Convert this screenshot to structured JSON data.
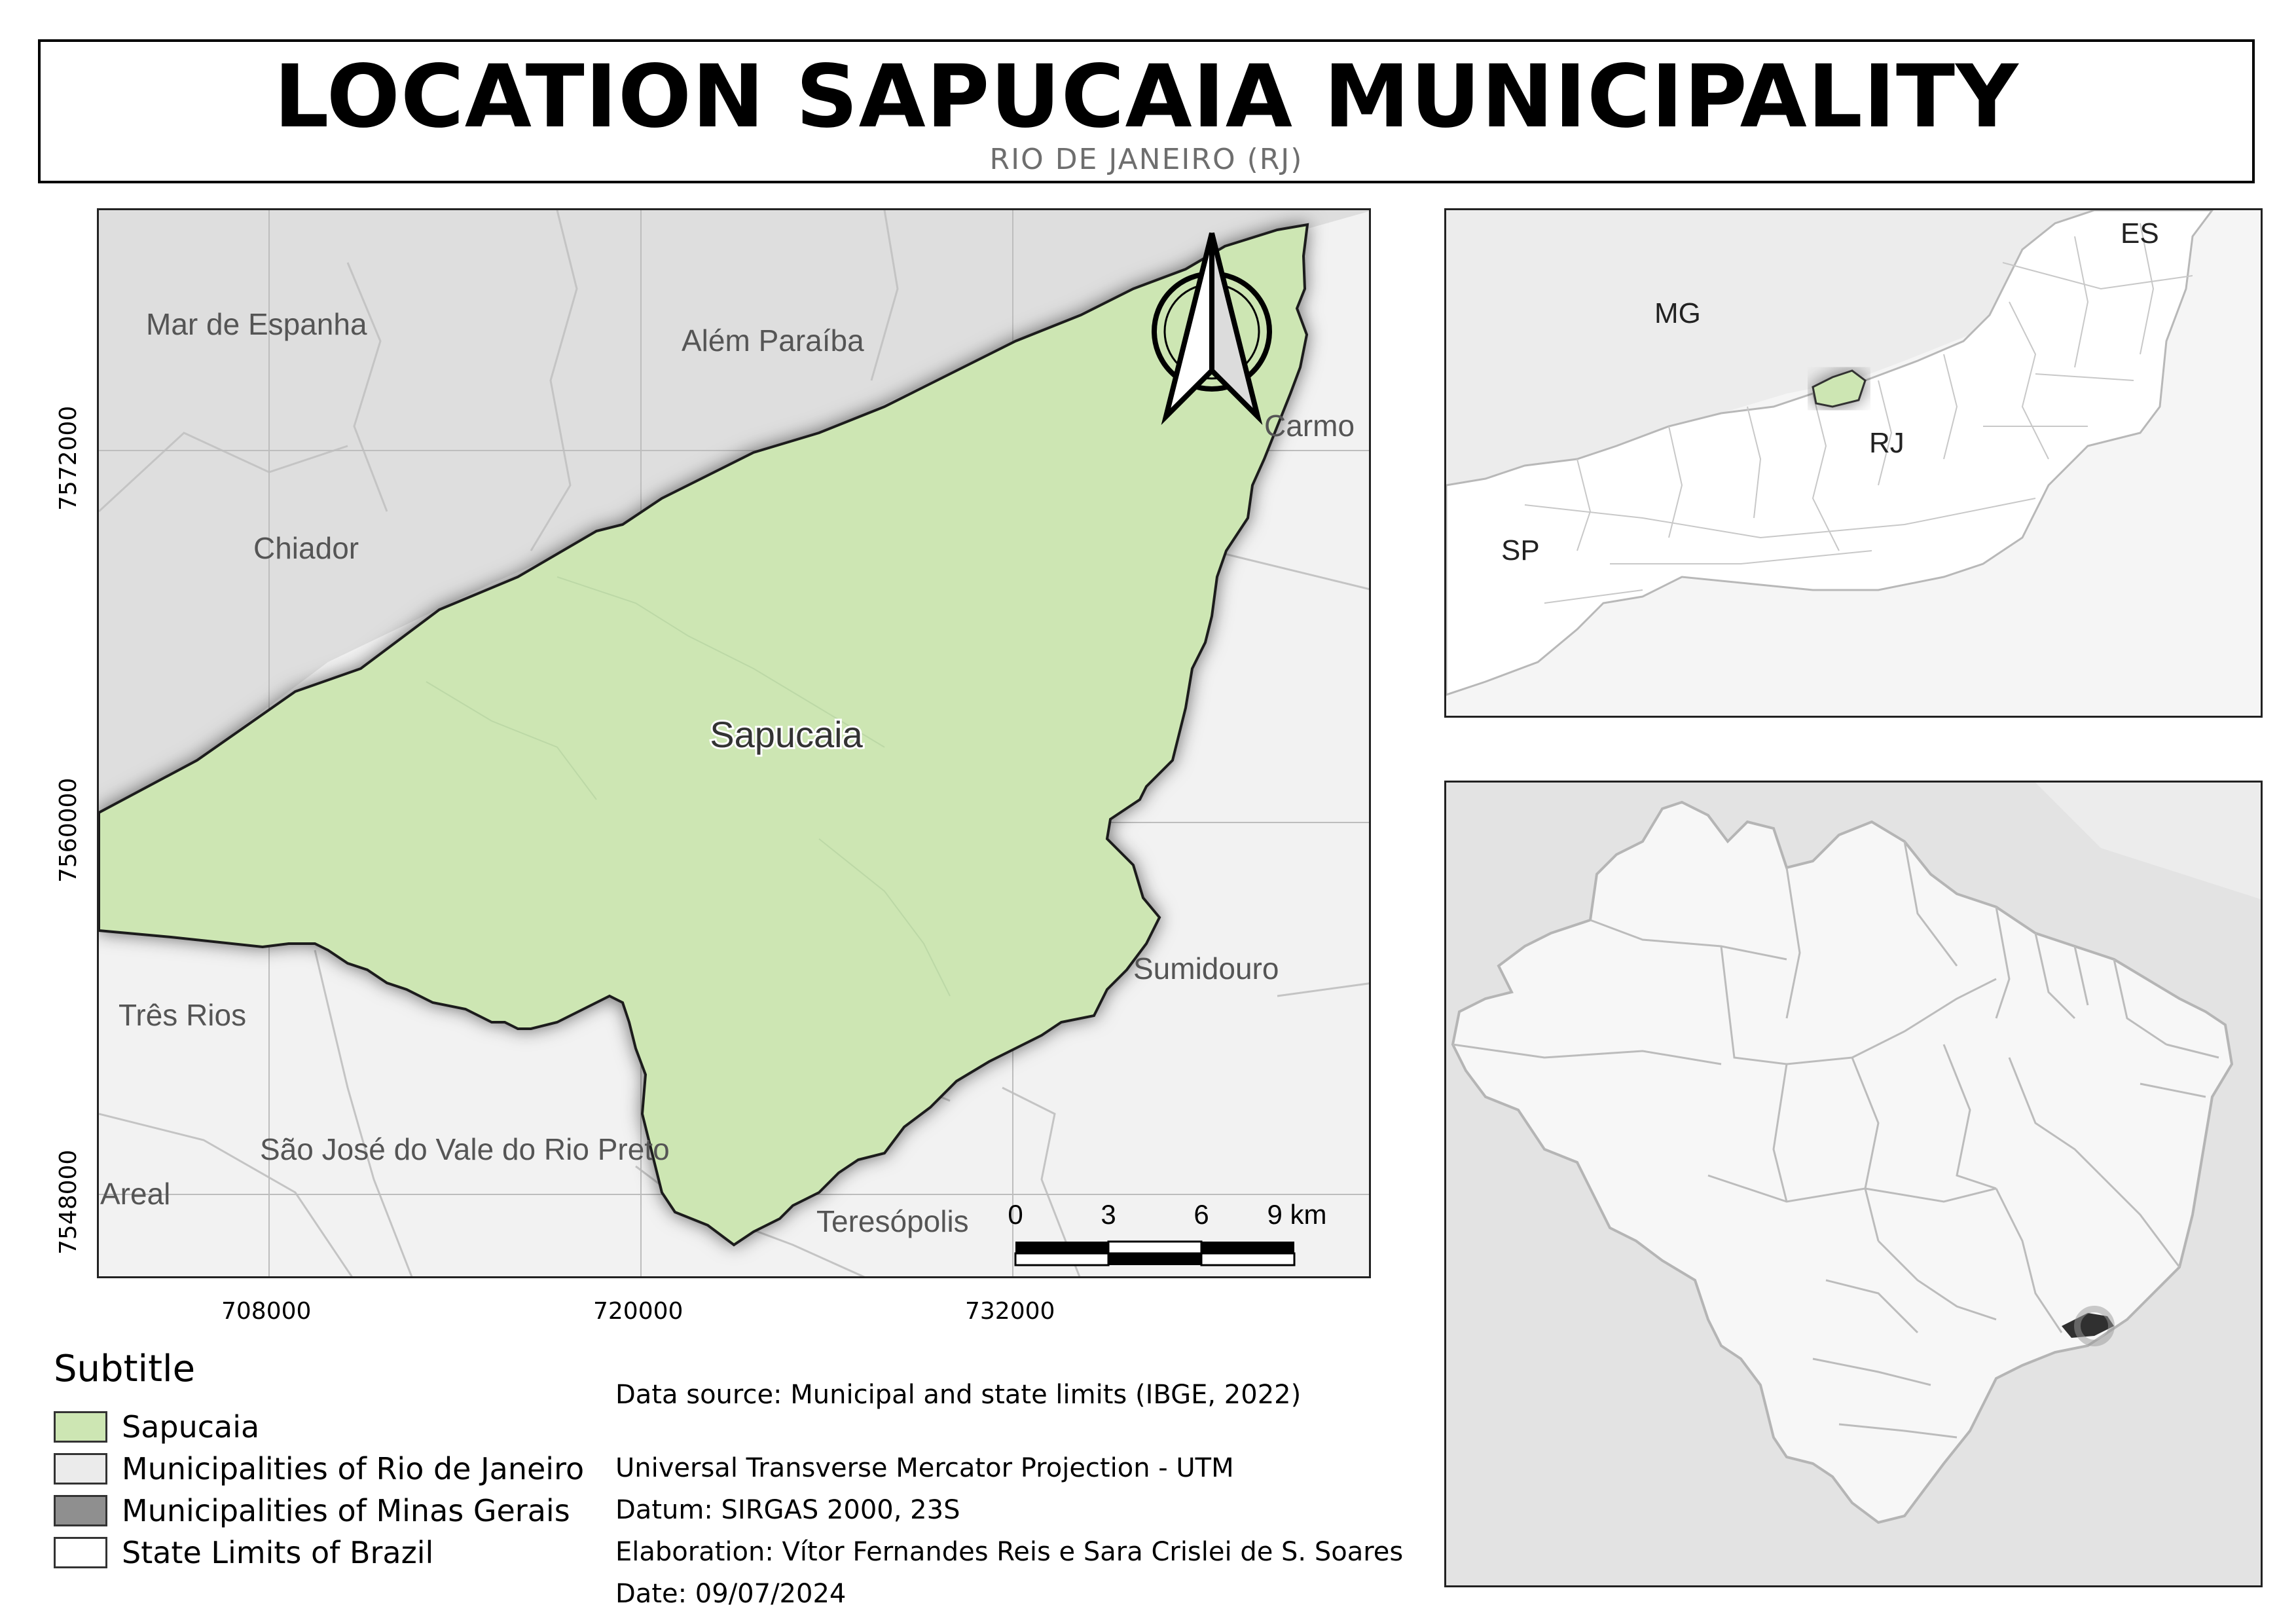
{
  "header": {
    "title": "LOCATION SAPUCAIA MUNICIPALITY",
    "subtitle": "RIO DE JANEIRO (RJ)"
  },
  "main_map": {
    "municipality_label": "Sapucaia",
    "neighbor_labels": {
      "mar_de_espanha": "Mar de Espanha",
      "alem_paraiba": "Além Paraíba",
      "carmo": "Carmo",
      "chiador": "Chiador",
      "tres_rios": "Três Rios",
      "sumidouro": "Sumidouro",
      "sao_jose": "São José do Vale do Rio Preto",
      "areal": "Areal",
      "teresopolis": "Teresópolis"
    },
    "x_ticks": [
      "708000",
      "720000",
      "732000"
    ],
    "y_ticks": [
      "7572000",
      "7560000",
      "7548000"
    ],
    "scale_bar": {
      "labels": [
        "0",
        "3",
        "6",
        "9 km"
      ]
    },
    "colors": {
      "sapucaia_fill": "#cde6b3",
      "rj_fill": "#f2f2f2",
      "mg_fill": "#dedede",
      "grid": "#bdbdbd"
    }
  },
  "inset_state": {
    "labels": {
      "es": "ES",
      "mg": "MG",
      "sp": "SP",
      "rj": "RJ"
    }
  },
  "inset_brazil": {},
  "legend": {
    "title": "Subtitle",
    "items": [
      {
        "label": "Sapucaia",
        "color": "#cde6b3"
      },
      {
        "label": "Municipalities of Rio de Janeiro",
        "color": "#ebebeb"
      },
      {
        "label": "Municipalities of Minas Gerais",
        "color": "#8f8f8f"
      },
      {
        "label": "State Limits of Brazil",
        "color": "#ffffff"
      }
    ]
  },
  "info": {
    "data_source": "Data source: Municipal and state limits (IBGE, 2022)",
    "projection": "Universal Transverse Mercator Projection - UTM",
    "datum": "Datum: SIRGAS 2000, 23S",
    "elaboration": "Elaboration: Vítor Fernandes Reis e Sara Crislei de S. Soares",
    "date": "Date: 09/07/2024"
  }
}
